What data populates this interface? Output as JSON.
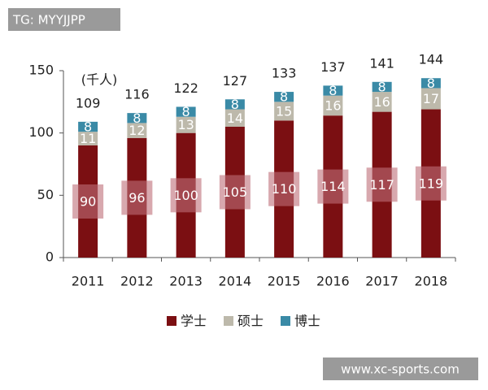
{
  "chart_data": {
    "type": "stacked_bar",
    "unit_label": "(千人)",
    "categories": [
      "2011",
      "2012",
      "2013",
      "2014",
      "2015",
      "2016",
      "2017",
      "2018"
    ],
    "series": [
      {
        "name": "学士",
        "color": "#7b0f12",
        "values": [
          90,
          96,
          100,
          105,
          110,
          114,
          117,
          119
        ]
      },
      {
        "name": "硕士",
        "color": "#bdb9ab",
        "values": [
          11,
          12,
          13,
          14,
          15,
          16,
          16,
          17
        ]
      },
      {
        "name": "博士",
        "color": "#3a8aa6",
        "values": [
          8,
          8,
          8,
          8,
          8,
          8,
          8,
          8
        ]
      }
    ],
    "totals": [
      109,
      116,
      122,
      127,
      133,
      137,
      141,
      144
    ],
    "ylim": [
      0,
      150
    ],
    "yticks": [
      0,
      50,
      100,
      150
    ],
    "grid": false,
    "legend": "bottom"
  },
  "watermarks": [
    "TG: MYYJJPP",
    "www.xc-sports.com"
  ]
}
